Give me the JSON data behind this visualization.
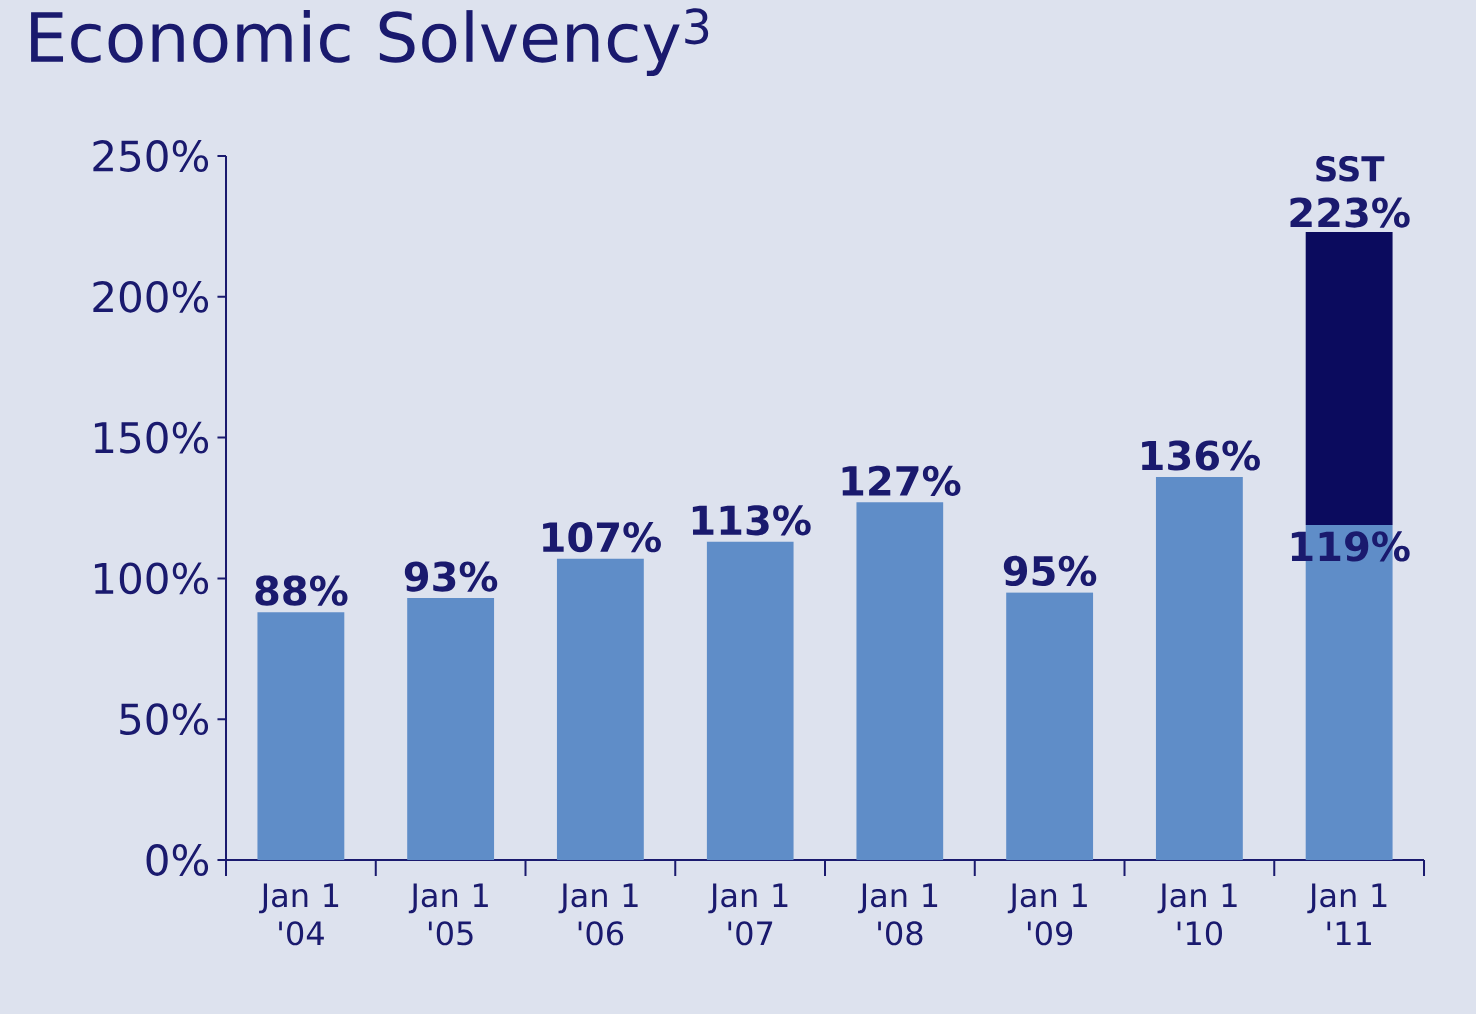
{
  "chart_data": {
    "type": "bar",
    "title": "Economic Solvency$^{3}$",
    "stacked": true,
    "categories": [
      "Jan 1 '04",
      "Jan 1 '05",
      "Jan 1 '06",
      "Jan 1 '07",
      "Jan 1 '08",
      "Jan 1 '09",
      "Jan 1 '10",
      "Jan 1 '11"
    ],
    "series": [
      {
        "color": "#5f8dc8",
        "values": [
          88,
          93,
          107,
          113,
          127,
          95,
          136,
          119
        ],
        "value_labels": [
          "88%",
          "93%",
          "107%",
          "113%",
          "127%",
          "95%",
          "136%",
          "119%"
        ]
      },
      {
        "color": "#0b0b5e",
        "values": [
          null,
          null,
          null,
          null,
          null,
          null,
          null,
          104
        ]
      }
    ],
    "totals": [
      null,
      null,
      null,
      null,
      null,
      null,
      null,
      "223%"
    ],
    "annotations": [
      {
        "text": "SST",
        "x": "Jan 1 '11",
        "y": 223
      }
    ],
    "ylim": [
      0,
      250
    ],
    "yticks": [
      {
        "value": 0,
        "label": "0%"
      },
      {
        "value": 50,
        "label": "50%"
      },
      {
        "value": 100,
        "label": "100%"
      },
      {
        "value": 150,
        "label": "150%"
      },
      {
        "value": 200,
        "label": "200%"
      },
      {
        "value": 250,
        "label": "250%"
      }
    ],
    "grid": false
  }
}
